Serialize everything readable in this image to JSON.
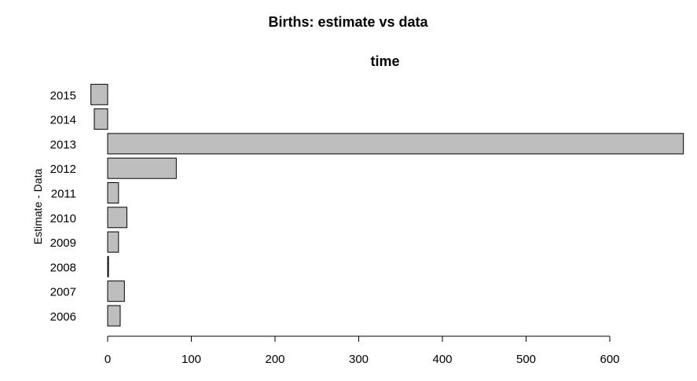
{
  "chart_data": {
    "type": "bar",
    "orientation": "horizontal",
    "title": "Births: estimate vs data",
    "subtitle": "time",
    "ylabel": "Estimate - Data",
    "xlabel": "",
    "categories": [
      "2006",
      "2007",
      "2008",
      "2009",
      "2010",
      "2011",
      "2012",
      "2013",
      "2014",
      "2015"
    ],
    "values": [
      15,
      20,
      1,
      13,
      23,
      13,
      82,
      688,
      -16,
      -20
    ],
    "xlim": [
      -20,
      690
    ],
    "xticks": [
      0,
      100,
      200,
      300,
      400,
      500,
      600
    ],
    "bar_color": "#bebebe",
    "grid": false
  }
}
